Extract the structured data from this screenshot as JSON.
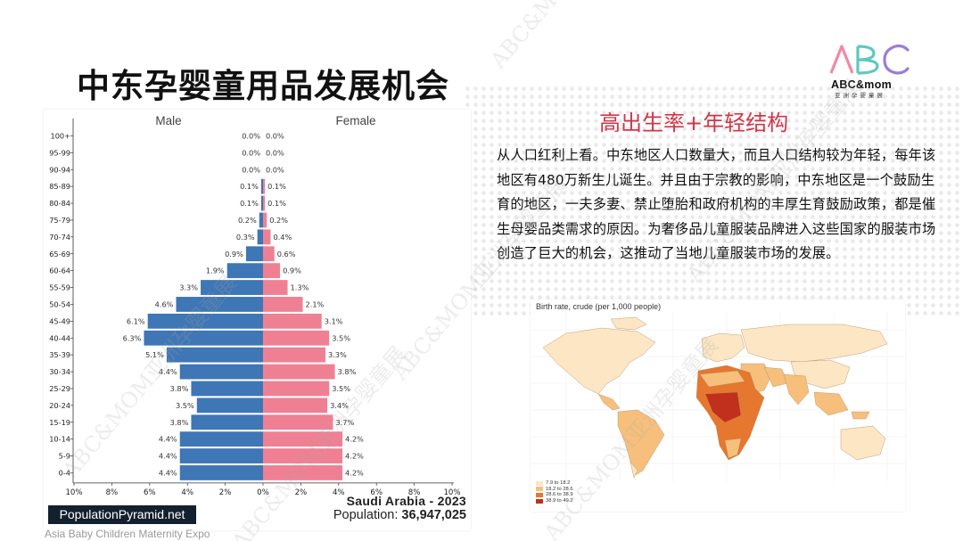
{
  "slide": {
    "title": "中东孕婴童用品发展机会",
    "logo_text": "ABC&mom",
    "logo_sub": "亚洲孕婴童展",
    "logo_letters": [
      "A",
      "B",
      "C"
    ],
    "footer_caption": "Asia Baby Children Maternity Expo",
    "watermark_text": "ABC&MOM亚洲孕婴童展"
  },
  "right": {
    "heading": "高出生率+年轻结构",
    "paragraph": "从人口红利上看。中东地区人口数量大，而且人口结构较为年轻，每年该地区有480万新生儿诞生。并且由于宗教的影响，中东地区是一个鼓励生育的地区，一夫多妻、禁止堕胎和政府机构的丰厚生育鼓励政策，都是催生母婴品类需求的原因。为奢侈品儿童服装品牌进入这些国家的服装市场创造了巨大的机会，这推动了当地儿童服装市场的发展。"
  },
  "pyramid": {
    "brand": "PopulationPyramid.net",
    "country": "Saudi Arabia - 2023",
    "population_label": "Population:",
    "population_value": "36,947,025"
  },
  "map": {
    "title": "Birth rate, crude (per 1,000 people)",
    "legend": [
      {
        "label": "7.9 to 18.2",
        "color": "#fde6c3"
      },
      {
        "label": "18.2 to 28.6",
        "color": "#f6c07c"
      },
      {
        "label": "28.6 to 38.9",
        "color": "#e6772e"
      },
      {
        "label": "38.9 to 49.2",
        "color": "#c1301c"
      }
    ]
  },
  "chart_data": {
    "type": "bar",
    "orientation": "horizontal",
    "subtype": "population-pyramid",
    "categories": [
      "100+",
      "95-99",
      "90-94",
      "85-89",
      "80-84",
      "75-79",
      "70-74",
      "65-69",
      "60-64",
      "55-59",
      "50-54",
      "45-49",
      "40-44",
      "35-39",
      "30-34",
      "25-29",
      "20-24",
      "15-19",
      "10-14",
      "5-9",
      "0-4"
    ],
    "series": [
      {
        "name": "Male",
        "color": "#3f76b5",
        "values": [
          0.0,
          0.0,
          0.0,
          0.1,
          0.1,
          0.2,
          0.3,
          0.9,
          1.9,
          3.3,
          4.6,
          6.1,
          6.3,
          5.1,
          4.4,
          3.8,
          3.5,
          3.8,
          4.4,
          4.4,
          4.4
        ]
      },
      {
        "name": "Female",
        "color": "#ef8094",
        "values": [
          0.0,
          0.0,
          0.0,
          0.1,
          0.1,
          0.2,
          0.4,
          0.6,
          0.9,
          1.3,
          2.1,
          3.1,
          3.5,
          3.3,
          3.8,
          3.5,
          3.4,
          3.7,
          4.2,
          4.2,
          4.2
        ]
      }
    ],
    "value_labels": {
      "Male": [
        "0.0%",
        "0.0%",
        "0.0%",
        "0.1%",
        "0.1%",
        "0.2%",
        "0.3%",
        "0.9%",
        "1.9%",
        "3.3%",
        "4.6%",
        "6.1%",
        "6.3%",
        "5.1%",
        "4.4%",
        "3.8%",
        "3.5%",
        "3.8%",
        "4.4%",
        "4.4%",
        "4.4%"
      ],
      "Female": [
        "0.0%",
        "0.0%",
        "0.0%",
        "0.1%",
        "0.1%",
        "0.2%",
        "0.4%",
        "0.6%",
        "0.9%",
        "1.3%",
        "2.1%",
        "3.1%",
        "3.5%",
        "3.3%",
        "3.8%",
        "3.5%",
        "3.4%",
        "3.7%",
        "4.2%",
        "4.2%",
        "4.2%"
      ]
    },
    "xticks": [
      "10%",
      "8%",
      "6%",
      "4%",
      "2%",
      "0%",
      "2%",
      "4%",
      "6%",
      "8%",
      "10%"
    ],
    "xlim": [
      -10,
      10
    ],
    "grid": false,
    "legend": "top"
  }
}
